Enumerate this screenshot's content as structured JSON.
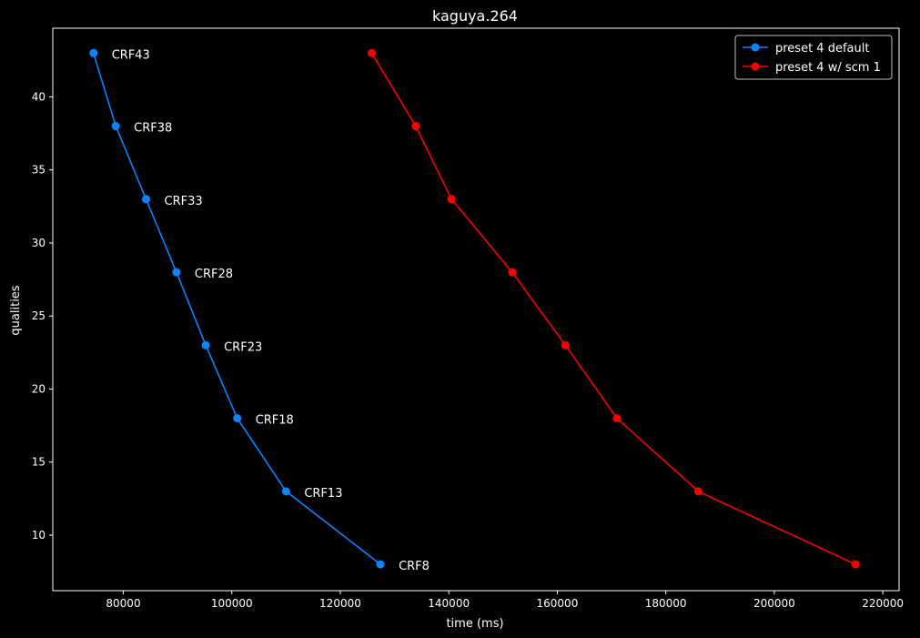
{
  "chart_data": {
    "type": "line",
    "title": "kaguya.264",
    "xlabel": "time (ms)",
    "ylabel": "qualities",
    "xlim": [
      67000,
      223000
    ],
    "ylim": [
      6.2,
      44.7
    ],
    "xticks": [
      80000,
      100000,
      120000,
      140000,
      160000,
      180000,
      200000,
      220000
    ],
    "yticks": [
      10,
      15,
      20,
      25,
      30,
      35,
      40
    ],
    "grid": false,
    "legend_position": "top-right",
    "series": [
      {
        "name": "preset 4 default",
        "color": "#0a84ff",
        "x": [
          74500,
          78600,
          84200,
          89800,
          95200,
          101000,
          110000,
          127400
        ],
        "y": [
          43,
          38,
          33,
          28,
          23,
          18,
          13,
          8
        ],
        "point_labels": [
          "CRF43",
          "CRF38",
          "CRF33",
          "CRF28",
          "CRF23",
          "CRF18",
          "CRF13",
          "CRF8"
        ]
      },
      {
        "name": "preset 4 w/ scm 1",
        "color": "#ff0000",
        "x": [
          125800,
          133900,
          140500,
          151700,
          161500,
          171000,
          186000,
          215000
        ],
        "y": [
          43,
          38,
          33,
          28,
          23,
          18,
          13,
          8
        ]
      }
    ]
  }
}
